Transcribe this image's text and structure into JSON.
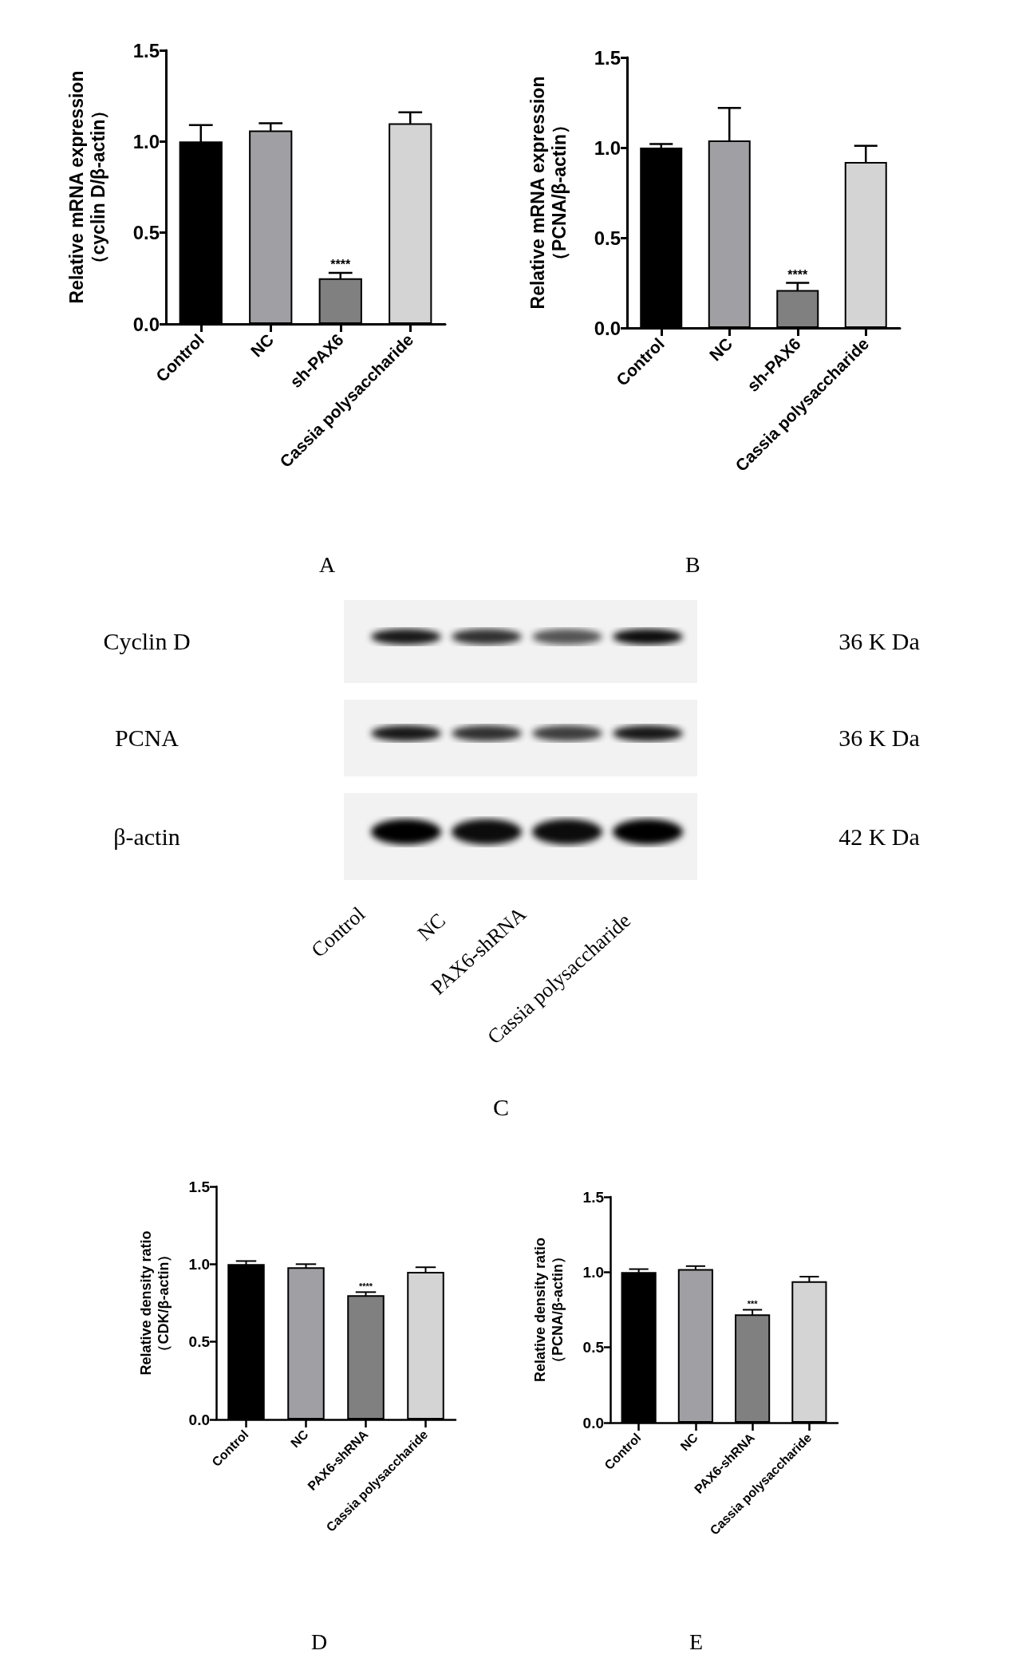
{
  "chart_data": [
    {
      "type": "bar",
      "categories": [
        "Control",
        "NC",
        "sh-PAX6",
        "Cassia polysaccharide"
      ],
      "values": [
        1.0,
        1.06,
        0.25,
        1.1
      ],
      "errors": [
        0.09,
        0.04,
        0.03,
        0.06
      ],
      "colors": [
        "#000000",
        "#a0a0a4",
        "#808080",
        "#d4d4d4"
      ],
      "ylim": [
        0,
        1.5
      ],
      "yticks": [
        {
          "value": 0,
          "label": "0.0"
        },
        {
          "value": 0.5,
          "label": "0.5"
        },
        {
          "value": 1,
          "label": "1.0"
        },
        {
          "value": 1.5,
          "label": "1.5"
        }
      ],
      "ylabel": "Relative mRNA expression\n（cyclin D/β-actin）",
      "annotations": [
        {
          "text": "****",
          "x": "sh-PAX6",
          "y": 0.28
        },
        "A"
      ]
    },
    {
      "type": "bar",
      "categories": [
        "Control",
        "NC",
        "sh-PAX6",
        "Cassia polysaccharide"
      ],
      "values": [
        1.0,
        1.04,
        0.21,
        0.92
      ],
      "errors": [
        0.02,
        0.18,
        0.04,
        0.09
      ],
      "colors": [
        "#000000",
        "#a0a0a4",
        "#808080",
        "#d4d4d4"
      ],
      "ylim": [
        0,
        1.5
      ],
      "yticks": [
        {
          "value": 0,
          "label": "0.0"
        },
        {
          "value": 0.5,
          "label": "0.5"
        },
        {
          "value": 1,
          "label": "1.0"
        },
        {
          "value": 1.5,
          "label": "1.5"
        }
      ],
      "ylabel": "Relative mRNA expression\n（PCNA/β-actin）",
      "annotations": [
        {
          "text": "****",
          "x": "sh-PAX6",
          "y": 0.25
        },
        "B"
      ]
    },
    {
      "type": "other",
      "categories": [
        "Control",
        "NC",
        "PAX6-shRNA",
        "Cassia polysaccharide"
      ],
      "y_categories": [
        "Cyclin D",
        "PCNA",
        "β-actin"
      ],
      "y2_categories": [
        "36 K Da",
        "36 K Da",
        "42 K Da"
      ],
      "annotations": [
        "C"
      ]
    },
    {
      "type": "bar",
      "categories": [
        "Control",
        "NC",
        "PAX6-shRNA",
        "Cassia polysaccharide"
      ],
      "values": [
        1.0,
        0.98,
        0.8,
        0.95
      ],
      "errors": [
        0.02,
        0.02,
        0.02,
        0.03
      ],
      "colors": [
        "#000000",
        "#a0a0a4",
        "#808080",
        "#d4d4d4"
      ],
      "ylim": [
        0,
        1.5
      ],
      "yticks": [
        {
          "value": 0,
          "label": "0.0"
        },
        {
          "value": 0.5,
          "label": "0.5"
        },
        {
          "value": 1,
          "label": "1.0"
        },
        {
          "value": 1.5,
          "label": "1.5"
        }
      ],
      "ylabel": "Relative density ratio\n（CDK/β-actin）",
      "annotations": [
        {
          "text": "****",
          "x": "PAX6-shRNA",
          "y": 0.82
        },
        "D"
      ]
    },
    {
      "type": "bar",
      "categories": [
        "Control",
        "NC",
        "PAX6-shRNA",
        "Cassia polysaccharide"
      ],
      "values": [
        1.0,
        1.02,
        0.72,
        0.94
      ],
      "errors": [
        0.02,
        0.02,
        0.03,
        0.03
      ],
      "colors": [
        "#000000",
        "#a0a0a4",
        "#808080",
        "#d4d4d4"
      ],
      "ylim": [
        0,
        1.5
      ],
      "yticks": [
        {
          "value": 0,
          "label": "0.0"
        },
        {
          "value": 0.5,
          "label": "0.5"
        },
        {
          "value": 1,
          "label": "1.0"
        },
        {
          "value": 1.5,
          "label": "1.5"
        }
      ],
      "ylabel": "Relative density ratio\n（PCNA/β-actin）",
      "annotations": [
        {
          "text": "***",
          "x": "PAX6-shRNA",
          "y": 0.75
        },
        "E"
      ]
    }
  ]
}
